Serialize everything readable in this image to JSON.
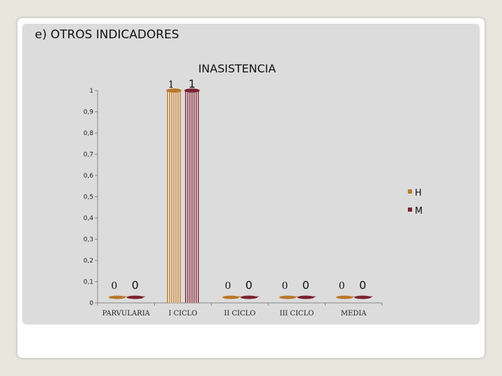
{
  "slide": {
    "heading": "e) OTROS INDICADORES"
  },
  "chart_data": {
    "type": "bar",
    "title": "INASISTENCIA",
    "xlabel": "",
    "ylabel": "",
    "categories": [
      "PARVULARIA",
      "I CICLO",
      "II CICLO",
      "III CICLO",
      "MEDIA"
    ],
    "series": [
      {
        "name": "H",
        "values": [
          0,
          1,
          0,
          0,
          0
        ],
        "labels": [
          "0",
          "1",
          "0",
          "0",
          "0"
        ],
        "color": "#b8782a"
      },
      {
        "name": "M",
        "values": [
          0,
          1,
          0,
          0,
          0
        ],
        "labels": [
          "0",
          "1",
          "0",
          "0",
          "0"
        ],
        "color": "#7a2331"
      }
    ],
    "ylim": [
      0,
      1
    ],
    "yticks": [
      "0",
      "0,1",
      "0,2",
      "0,3",
      "0,4",
      "0,5",
      "0,6",
      "0,7",
      "0,8",
      "0,9",
      "1"
    ],
    "grid": false,
    "legend_position": "right"
  }
}
